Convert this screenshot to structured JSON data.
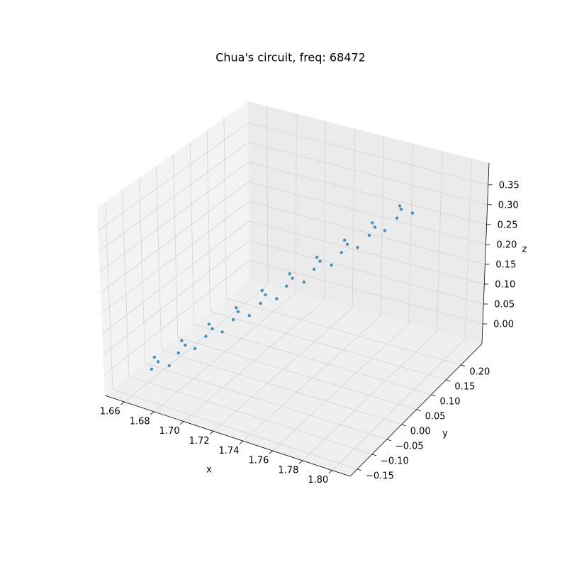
{
  "chart_data": {
    "type": "scatter3d",
    "title": "Chua's circuit, freq: 68472",
    "xlabel": "x",
    "ylabel": "y",
    "zlabel": "z",
    "color": "#1f77b4",
    "xlim": [
      1.647,
      1.812
    ],
    "ylim": [
      -0.174,
      0.271
    ],
    "zlim": [
      -0.05,
      0.405
    ],
    "xticks": [
      {
        "value": 1.66,
        "label": "1.66"
      },
      {
        "value": 1.68,
        "label": "1.68"
      },
      {
        "value": 1.7,
        "label": "1.70"
      },
      {
        "value": 1.72,
        "label": "1.72"
      },
      {
        "value": 1.74,
        "label": "1.74"
      },
      {
        "value": 1.76,
        "label": "1.76"
      },
      {
        "value": 1.78,
        "label": "1.78"
      },
      {
        "value": 1.8,
        "label": "1.80"
      }
    ],
    "yticks": [
      {
        "value": -0.15,
        "label": "−0.15"
      },
      {
        "value": -0.1,
        "label": "−0.10"
      },
      {
        "value": -0.05,
        "label": "−0.05"
      },
      {
        "value": 0.0,
        "label": "0.00"
      },
      {
        "value": 0.05,
        "label": "0.05"
      },
      {
        "value": 0.1,
        "label": "0.10"
      },
      {
        "value": 0.15,
        "label": "0.15"
      },
      {
        "value": 0.2,
        "label": "0.20"
      }
    ],
    "zticks": [
      {
        "value": 0.0,
        "label": "0.00"
      },
      {
        "value": 0.05,
        "label": "0.05"
      },
      {
        "value": 0.1,
        "label": "0.10"
      },
      {
        "value": 0.15,
        "label": "0.15"
      },
      {
        "value": 0.2,
        "label": "0.20"
      },
      {
        "value": 0.25,
        "label": "0.25"
      },
      {
        "value": 0.3,
        "label": "0.30"
      },
      {
        "value": 0.35,
        "label": "0.35"
      }
    ],
    "grid": true,
    "x": [
      1.665,
      1.668,
      1.671,
      1.675,
      1.678,
      1.681,
      1.684,
      1.687,
      1.691,
      1.694,
      1.697,
      1.7,
      1.703,
      1.707,
      1.71,
      1.713,
      1.716,
      1.719,
      1.723,
      1.726,
      1.729,
      1.732,
      1.735,
      1.739,
      1.742,
      1.745,
      1.748,
      1.752,
      1.755,
      1.758,
      1.761,
      1.764,
      1.768,
      1.771,
      1.774,
      1.777,
      1.78,
      1.784,
      1.787,
      1.79
    ],
    "y": [
      -0.09,
      -0.114,
      -0.137,
      -0.101,
      -0.064,
      -0.088,
      -0.112,
      -0.075,
      -0.039,
      -0.062,
      -0.086,
      -0.049,
      -0.013,
      -0.037,
      -0.06,
      -0.024,
      0.013,
      -0.011,
      -0.035,
      0.002,
      0.038,
      0.015,
      -0.009,
      0.027,
      0.064,
      0.04,
      0.017,
      0.053,
      0.089,
      0.066,
      0.042,
      0.079,
      0.115,
      0.092,
      0.068,
      0.104,
      0.141,
      0.117,
      0.094,
      0.13
    ],
    "z": [
      0.0,
      0.03,
      0.019,
      0.009,
      0.039,
      0.069,
      0.058,
      0.048,
      0.078,
      0.108,
      0.097,
      0.087,
      0.117,
      0.147,
      0.136,
      0.126,
      0.156,
      0.186,
      0.175,
      0.165,
      0.195,
      0.225,
      0.214,
      0.204,
      0.234,
      0.264,
      0.253,
      0.243,
      0.273,
      0.303,
      0.292,
      0.282,
      0.312,
      0.342,
      0.331,
      0.321,
      0.351,
      0.381,
      0.37,
      0.36
    ]
  }
}
